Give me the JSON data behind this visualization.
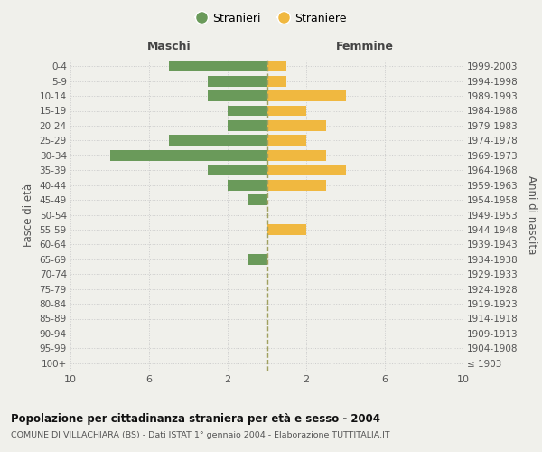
{
  "age_groups": [
    "100+",
    "95-99",
    "90-94",
    "85-89",
    "80-84",
    "75-79",
    "70-74",
    "65-69",
    "60-64",
    "55-59",
    "50-54",
    "45-49",
    "40-44",
    "35-39",
    "30-34",
    "25-29",
    "20-24",
    "15-19",
    "10-14",
    "5-9",
    "0-4"
  ],
  "birth_years": [
    "≤ 1903",
    "1904-1908",
    "1909-1913",
    "1914-1918",
    "1919-1923",
    "1924-1928",
    "1929-1933",
    "1934-1938",
    "1939-1943",
    "1944-1948",
    "1949-1953",
    "1954-1958",
    "1959-1963",
    "1964-1968",
    "1969-1973",
    "1974-1978",
    "1979-1983",
    "1984-1988",
    "1989-1993",
    "1994-1998",
    "1999-2003"
  ],
  "males": [
    0,
    0,
    0,
    0,
    0,
    0,
    0,
    1,
    0,
    0,
    0,
    1,
    2,
    3,
    8,
    5,
    2,
    2,
    3,
    3,
    5
  ],
  "females": [
    0,
    0,
    0,
    0,
    0,
    0,
    0,
    0,
    0,
    2,
    0,
    0,
    3,
    4,
    3,
    2,
    3,
    2,
    4,
    1,
    1
  ],
  "male_color": "#6a9a5a",
  "female_color": "#f0b840",
  "bg_color": "#f0f0eb",
  "grid_color": "#cccccc",
  "dashed_color": "#a0a060",
  "xlim": 10,
  "title": "Popolazione per cittadinanza straniera per età e sesso - 2004",
  "subtitle": "COMUNE DI VILLACHIARA (BS) - Dati ISTAT 1° gennaio 2004 - Elaborazione TUTTITALIA.IT",
  "xlabel_left": "Maschi",
  "xlabel_right": "Femmine",
  "ylabel_left": "Fasce di età",
  "ylabel_right": "Anni di nascita",
  "legend_males": "Stranieri",
  "legend_females": "Straniere"
}
